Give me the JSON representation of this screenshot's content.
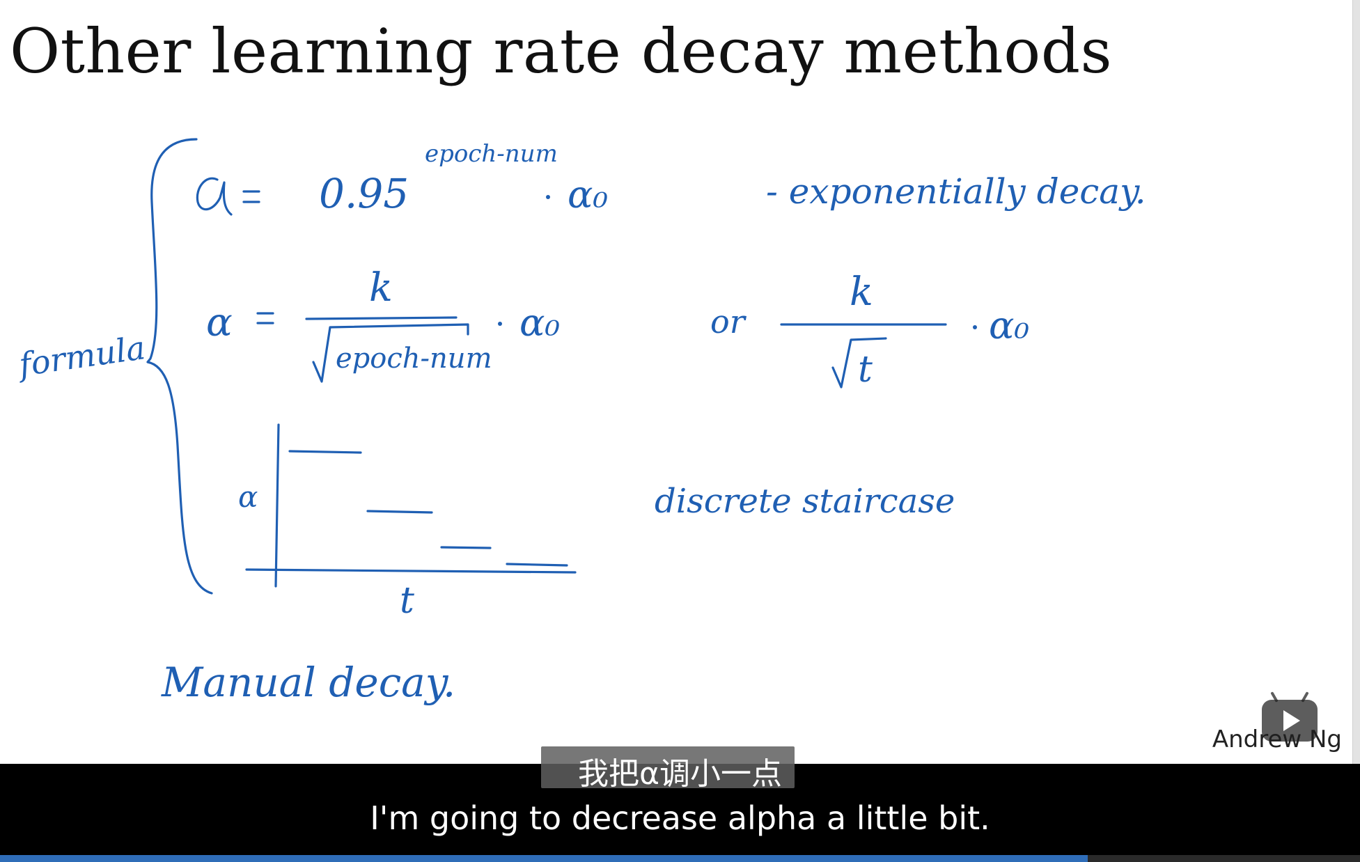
{
  "slide": {
    "title": "Other learning rate decay methods",
    "author": "Andrew Ng",
    "handwriting": {
      "formula_label": "formula",
      "exp_superscript": "epoch-num",
      "exp_note": "- exponentially decay.",
      "or_label": "or",
      "sqrt_t": "t",
      "k_label": "k",
      "alpha_axis": "α",
      "t_axis": "t",
      "staircase_note": "discrete staircase",
      "manual_note": "Manual decay."
    }
  },
  "player": {
    "play_icon": "play-icon",
    "progress": 0.8
  },
  "subtitles": {
    "chinese": "我把α调小一点",
    "english": "I'm going to decrease alpha a little bit."
  },
  "colors": {
    "ink": "#1f5fb3",
    "subtitle_bar": "#000000",
    "progress": "#2f6db8"
  }
}
